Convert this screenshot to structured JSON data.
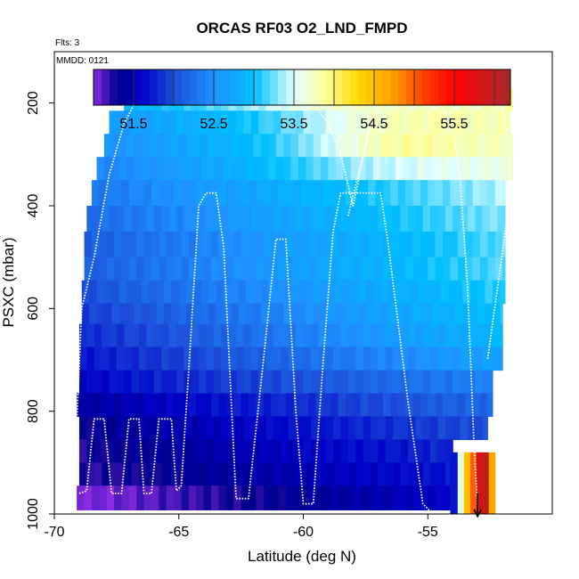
{
  "chart_data": {
    "type": "heatmap",
    "title": "ORCAS RF03 O2_LND_FMPD",
    "flights_label": "Flts: 3",
    "date_label": "MMDD: 0121",
    "xlabel": "Latitude (deg N)",
    "ylabel": "PSXC (mbar)",
    "xlim": [
      -70,
      -50
    ],
    "ylim": [
      1000,
      100
    ],
    "x_ticks": [
      -70,
      -65,
      -60,
      -55
    ],
    "x_tick_labels": [
      "-70",
      "-65",
      "-60",
      "-55"
    ],
    "y_ticks": [
      200,
      400,
      600,
      800,
      1000
    ],
    "y_tick_labels": [
      "200",
      "400",
      "600",
      "800",
      "1000"
    ],
    "colorbar": {
      "range": [
        51.0,
        56.2
      ],
      "ticks": [
        51.5,
        52.5,
        53.5,
        54.5,
        55.5
      ],
      "tick_labels": [
        "51.5",
        "52.5",
        "53.5",
        "54.5",
        "55.5"
      ],
      "color_stops": [
        {
          "v": 51.0,
          "color": "#8a2be2"
        },
        {
          "v": 51.3,
          "color": "#00008b"
        },
        {
          "v": 51.6,
          "color": "#0000c8"
        },
        {
          "v": 52.0,
          "color": "#1c4fd8"
        },
        {
          "v": 52.5,
          "color": "#1e90ff"
        },
        {
          "v": 53.0,
          "color": "#00bfff"
        },
        {
          "v": 53.5,
          "color": "#e0ffff"
        },
        {
          "v": 53.9,
          "color": "#ffff99"
        },
        {
          "v": 54.3,
          "color": "#ffd700"
        },
        {
          "v": 54.7,
          "color": "#ffa500"
        },
        {
          "v": 55.1,
          "color": "#ff4500"
        },
        {
          "v": 55.5,
          "color": "#ff0000"
        },
        {
          "v": 56.2,
          "color": "#a52a2a"
        }
      ]
    },
    "field_layers": [
      {
        "p_top": 170,
        "p_bot": 215,
        "lat_min": -67.2,
        "lat_max": -51.6,
        "a": 52.9,
        "b": 53.8,
        "p0": -59.0,
        "w": 4.0,
        "bump": 0.3
      },
      {
        "p_top": 215,
        "p_bot": 260,
        "lat_min": -67.8,
        "lat_max": -51.7,
        "a": 52.6,
        "b": 53.7,
        "p0": -56.5,
        "w": 4.0,
        "bump": 0.4
      },
      {
        "p_top": 260,
        "p_bot": 305,
        "lat_min": -68.0,
        "lat_max": -51.6,
        "a": 52.5,
        "b": 53.7,
        "p0": -56.5,
        "w": 3.5,
        "bump": 0.5
      },
      {
        "p_top": 305,
        "p_bot": 350,
        "lat_min": -68.3,
        "lat_max": -51.6,
        "a": 52.4,
        "b": 53.6,
        "p0": -57.0,
        "w": 4.0,
        "bump": 0.2
      },
      {
        "p_top": 350,
        "p_bot": 400,
        "lat_min": -68.5,
        "lat_max": -51.9,
        "a": 52.3,
        "b": 53.4,
        "p0": -57.0,
        "w": 4.0,
        "bump": 0.0
      },
      {
        "p_top": 400,
        "p_bot": 450,
        "lat_min": -68.7,
        "lat_max": -51.9,
        "a": 52.2,
        "b": 53.3,
        "p0": -57.0,
        "w": 4.0,
        "bump": 0.0
      },
      {
        "p_top": 450,
        "p_bot": 500,
        "lat_min": -68.8,
        "lat_max": -51.9,
        "a": 52.1,
        "b": 53.2,
        "p0": -57.0,
        "w": 4.0,
        "bump": 0.0
      },
      {
        "p_top": 500,
        "p_bot": 545,
        "lat_min": -68.8,
        "lat_max": -51.9,
        "a": 52.1,
        "b": 53.2,
        "p0": -57.0,
        "w": 4.0,
        "bump": 0.0
      },
      {
        "p_top": 545,
        "p_bot": 590,
        "lat_min": -68.9,
        "lat_max": -51.9,
        "a": 52.0,
        "b": 53.1,
        "p0": -57.0,
        "w": 4.0,
        "bump": 0.0
      },
      {
        "p_top": 590,
        "p_bot": 630,
        "lat_min": -68.9,
        "lat_max": -52.0,
        "a": 51.9,
        "b": 53.0,
        "p0": -57.0,
        "w": 4.0,
        "bump": 0.0
      },
      {
        "p_top": 630,
        "p_bot": 675,
        "lat_min": -69.0,
        "lat_max": -52.0,
        "a": 51.8,
        "b": 52.9,
        "p0": -57.0,
        "w": 4.0,
        "bump": 0.0
      },
      {
        "p_top": 675,
        "p_bot": 720,
        "lat_min": -69.0,
        "lat_max": -52.0,
        "a": 51.7,
        "b": 52.7,
        "p0": -57.0,
        "w": 4.0,
        "bump": 0.0
      },
      {
        "p_top": 720,
        "p_bot": 765,
        "lat_min": -69.0,
        "lat_max": -52.4,
        "a": 51.6,
        "b": 52.4,
        "p0": -57.0,
        "w": 4.0,
        "bump": 0.0
      },
      {
        "p_top": 765,
        "p_bot": 810,
        "lat_min": -69.1,
        "lat_max": -52.4,
        "a": 51.4,
        "b": 52.2,
        "p0": -57.0,
        "w": 4.0,
        "bump": 0.0
      },
      {
        "p_top": 810,
        "p_bot": 855,
        "lat_min": -69.0,
        "lat_max": -52.6,
        "a": 51.3,
        "b": 52.0,
        "p0": -57.0,
        "w": 4.0,
        "bump": 0.0
      },
      {
        "p_top": 855,
        "p_bot": 900,
        "lat_min": -69.0,
        "lat_max": -54.0,
        "a": 51.25,
        "b": 51.8,
        "p0": -57.0,
        "w": 4.0,
        "bump": 0.0
      },
      {
        "p_top": 900,
        "p_bot": 945,
        "lat_min": -69.0,
        "lat_max": -54.0,
        "a": 51.2,
        "b": 51.7,
        "p0": -57.0,
        "w": 4.0,
        "bump": 0.0
      },
      {
        "p_top": 945,
        "p_bot": 992,
        "lat_min": -69.1,
        "lat_max": -54.0,
        "a": 51.0,
        "b": 51.6,
        "p0": -57.0,
        "w": 4.0,
        "bump": 0.0
      }
    ],
    "surface_cells": {
      "lat": [
        -54.1,
        -53.8,
        -53.55,
        -53.3,
        -53.05,
        -52.8,
        -52.55
      ],
      "p_top": 880,
      "p_bot": 1000,
      "values": [
        51.7,
        53.6,
        54.5,
        55.0,
        55.8,
        56.0,
        54.7
      ]
    },
    "flight_tracks": [
      {
        "name": "track-1",
        "points": [
          [
            -69.0,
            960
          ],
          [
            -68.7,
            955
          ],
          [
            -68.4,
            815
          ],
          [
            -68.0,
            815
          ],
          [
            -67.7,
            960
          ],
          [
            -67.3,
            960
          ],
          [
            -67.0,
            815
          ],
          [
            -66.6,
            815
          ],
          [
            -66.4,
            960
          ],
          [
            -66.1,
            960
          ],
          [
            -65.8,
            815
          ],
          [
            -65.3,
            815
          ],
          [
            -65.1,
            955
          ],
          [
            -64.9,
            945
          ],
          [
            -64.6,
            720
          ],
          [
            -64.2,
            400
          ],
          [
            -63.9,
            375
          ],
          [
            -63.5,
            375
          ],
          [
            -63.2,
            480
          ],
          [
            -62.7,
            970
          ],
          [
            -62.2,
            970
          ],
          [
            -61.6,
            700
          ],
          [
            -61.1,
            465
          ],
          [
            -60.7,
            465
          ],
          [
            -60.3,
            800
          ],
          [
            -60.0,
            980
          ],
          [
            -59.6,
            980
          ],
          [
            -59.2,
            700
          ],
          [
            -58.8,
            450
          ],
          [
            -58.5,
            375
          ],
          [
            -56.9,
            375
          ],
          [
            -56.6,
            470
          ],
          [
            -55.8,
            780
          ],
          [
            -55.2,
            980
          ],
          [
            -54.9,
            995
          ]
        ]
      },
      {
        "name": "track-2",
        "points": [
          [
            -69.2,
            930
          ],
          [
            -68.9,
            600
          ],
          [
            -68.4,
            500
          ],
          [
            -67.8,
            340
          ],
          [
            -67.2,
            240
          ],
          [
            -66.5,
            175
          ],
          [
            -60.2,
            175
          ],
          [
            -59.7,
            195
          ],
          [
            -59.0,
            240
          ],
          [
            -58.5,
            300
          ],
          [
            -58.3,
            340
          ],
          [
            -58.0,
            400
          ],
          [
            -57.3,
            240
          ],
          [
            -56.8,
            185
          ],
          [
            -56.3,
            175
          ],
          [
            -54.9,
            175
          ],
          [
            -54.4,
            210
          ],
          [
            -54.0,
            250
          ],
          [
            -53.7,
            350
          ],
          [
            -53.4,
            560
          ],
          [
            -53.15,
            860
          ],
          [
            -53.0,
            985
          ]
        ]
      },
      {
        "name": "track-3",
        "points": [
          [
            -58.2,
            420
          ],
          [
            -57.3,
            240
          ],
          [
            -56.5,
            178
          ],
          [
            -52.1,
            178
          ],
          [
            -51.7,
            290
          ],
          [
            -51.8,
            420
          ],
          [
            -52.2,
            560
          ],
          [
            -52.6,
            700
          ]
        ]
      }
    ],
    "descent_arrow": {
      "lat": -53.0,
      "p_from": 960,
      "p_to": 1005
    }
  }
}
